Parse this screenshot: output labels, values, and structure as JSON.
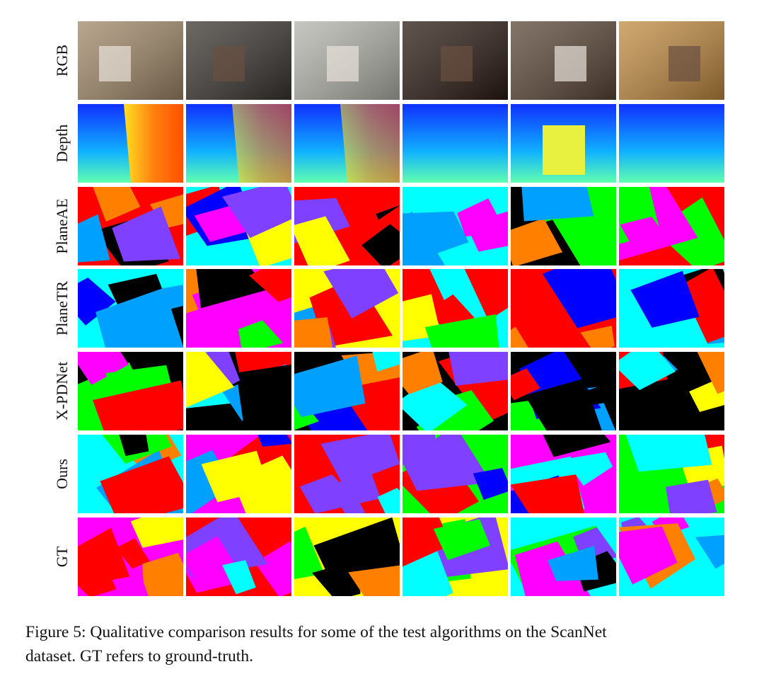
{
  "figure": {
    "rows": [
      "RGB",
      "Depth",
      "PlaneAE",
      "PlaneTR",
      "X-PDNet",
      "Ours",
      "GT"
    ]
  },
  "caption": {
    "lines": [
      "Figure 5: Qualitative comparison results for some of the test algorithms on the ScanNet",
      "dataset. GT refers to ground-truth."
    ]
  }
}
